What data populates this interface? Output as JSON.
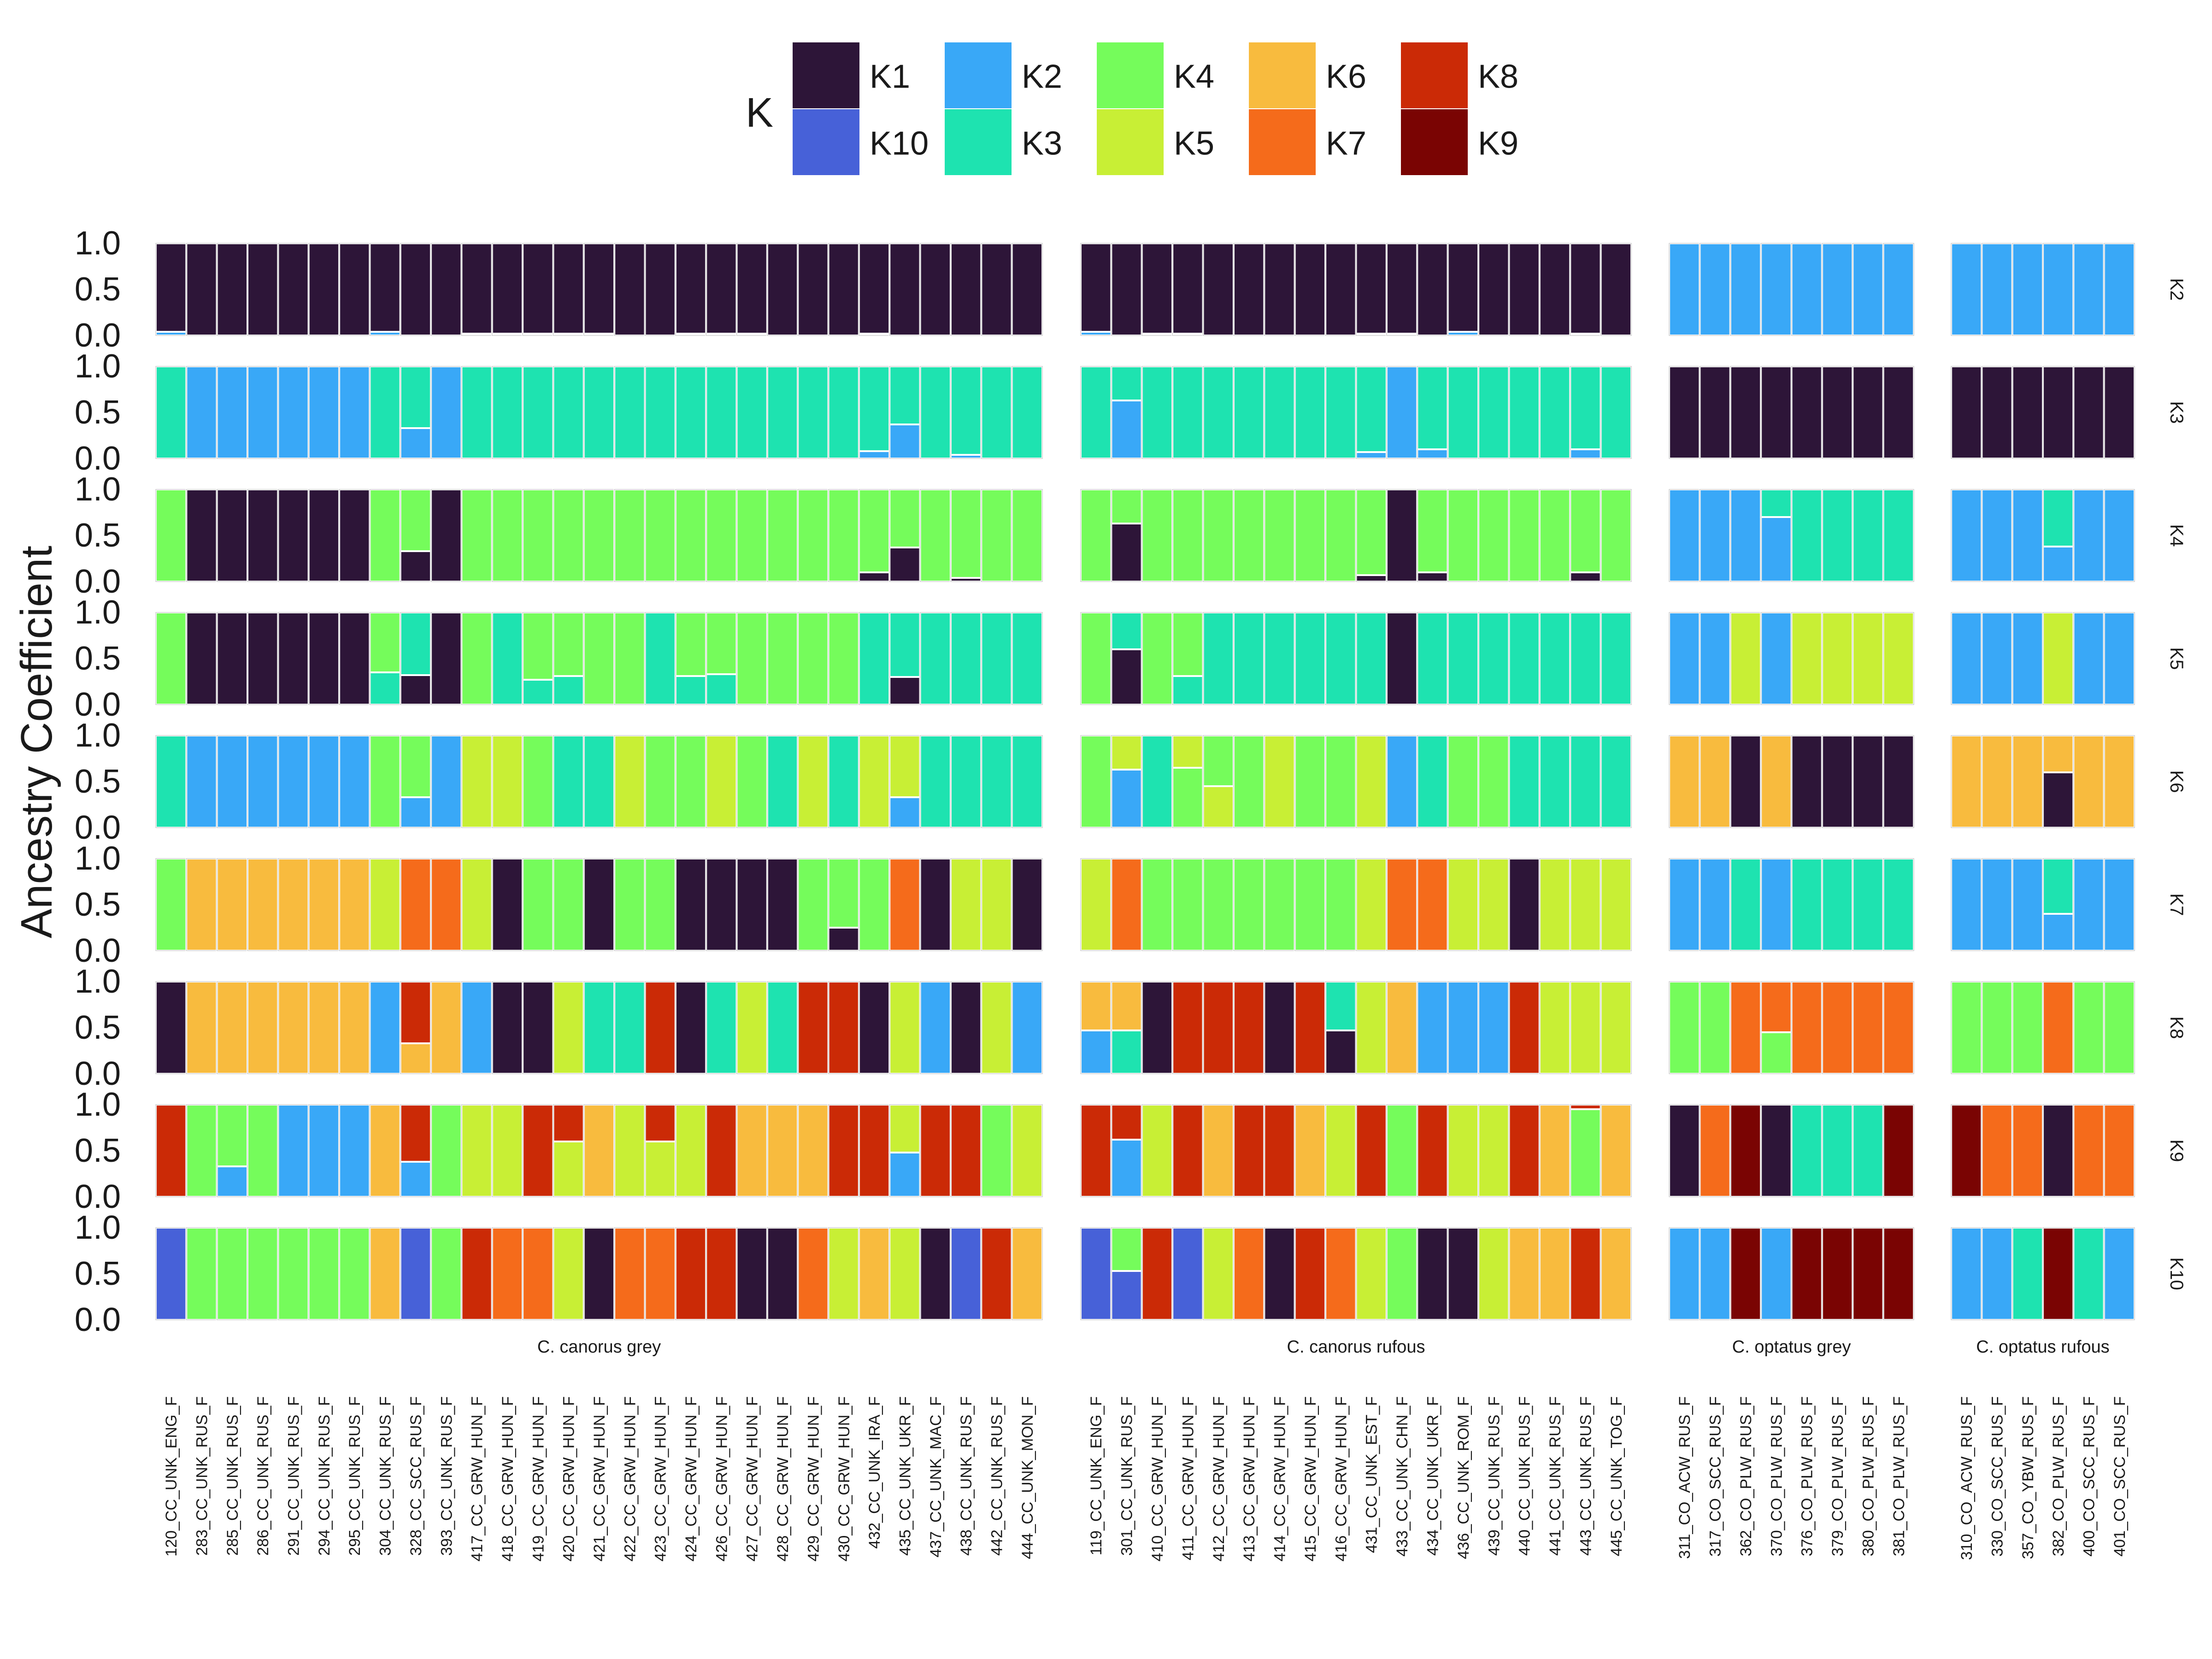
{
  "chart_data": {
    "type": "bar",
    "subtype": "stacked-faceted-admixture",
    "ylabel": "Ancestry Coefficient",
    "ylim": [
      0,
      1
    ],
    "yticks": [
      "0.0",
      "0.5",
      "1.0"
    ],
    "legend": {
      "title": "K",
      "placement": "top",
      "entries": [
        {
          "label": "K1",
          "color": "#2d1538"
        },
        {
          "label": "K2",
          "color": "#39a8f7"
        },
        {
          "label": "K4",
          "color": "#75fc5b"
        },
        {
          "label": "K6",
          "color": "#f8bb3e"
        },
        {
          "label": "K8",
          "color": "#cb2a06"
        },
        {
          "label": "K10",
          "color": "#4761d8"
        },
        {
          "label": "K3",
          "color": "#1ee3b0"
        },
        {
          "label": "K5",
          "color": "#c8ef35"
        },
        {
          "label": "K7",
          "color": "#f56b1b"
        },
        {
          "label": "K9",
          "color": "#7a0403"
        }
      ]
    },
    "colors": {
      "K1": "#2d1538",
      "K2": "#39a8f7",
      "K3": "#1ee3b0",
      "K4": "#75fc5b",
      "K5": "#c8ef35",
      "K6": "#f8bb3e",
      "K7": "#f56b1b",
      "K8": "#cb2a06",
      "K9": "#7a0403",
      "K10": "#4761d8"
    },
    "row_labels": [
      "K2",
      "K3",
      "K4",
      "K5",
      "K6",
      "K7",
      "K8",
      "K9",
      "K10"
    ],
    "groups": [
      {
        "label": "C. canorus grey",
        "samples": [
          "120_CC_UNK_ENG_F",
          "283_CC_UNK_RUS_F",
          "285_CC_UNK_RUS_F",
          "286_CC_UNK_RUS_F",
          "291_CC_UNK_RUS_F",
          "294_CC_UNK_RUS_F",
          "295_CC_UNK_RUS_F",
          "304_CC_UNK_RUS_F",
          "328_CC_SCC_RUS_F",
          "393_CC_UNK_RUS_F",
          "417_CC_GRW_HUN_F",
          "418_CC_GRW_HUN_F",
          "419_CC_GRW_HUN_F",
          "420_CC_GRW_HUN_F",
          "421_CC_GRW_HUN_F",
          "422_CC_GRW_HUN_F",
          "423_CC_GRW_HUN_F",
          "424_CC_GRW_HUN_F",
          "426_CC_GRW_HUN_F",
          "427_CC_GRW_HUN_F",
          "428_CC_GRW_HUN_F",
          "429_CC_GRW_HUN_F",
          "430_CC_GRW_HUN_F",
          "432_CC_UNK_IRA_F",
          "435_CC_UNK_UKR_F",
          "437_CC_UNK_MAC_F",
          "438_CC_UNK_RUS_F",
          "442_CC_UNK_RUS_F",
          "444_CC_UNK_MON_F"
        ],
        "rows": {
          "K2": [
            "K1:0.96|K2:0.04",
            "K1",
            "K1",
            "K1",
            "K1",
            "K1",
            "K1",
            "K1:0.96|K2:0.04",
            "K1",
            "K1",
            "K1:0.98|K2:0.02",
            "K1:0.98|K2:0.02",
            "K1:0.98|K2:0.02",
            "K1:0.98|K2:0.02",
            "K1:0.98|K2:0.02",
            "K1",
            "K1",
            "K1:0.98|K2:0.02",
            "K1:0.98|K2:0.02",
            "K1:0.98|K2:0.02",
            "K1",
            "K1",
            "K1",
            "K1:0.98|K2:0.02",
            "K1",
            "K1",
            "K1",
            "K1",
            "K1"
          ],
          "K3": [
            "K3",
            "K2",
            "K2",
            "K2",
            "K2",
            "K2",
            "K2",
            "K3",
            "K3:0.67|K2:0.33",
            "K2",
            "K3",
            "K3",
            "K3",
            "K3",
            "K3",
            "K3",
            "K3",
            "K3",
            "K3",
            "K3",
            "K3",
            "K3",
            "K3",
            "K3:0.92|K2:0.08",
            "K3:0.63|K2:0.37",
            "K3",
            "K3:0.96|K2:0.04",
            "K3",
            "K3"
          ],
          "K4": [
            "K4",
            "K1",
            "K1",
            "K1",
            "K1",
            "K1",
            "K1",
            "K4",
            "K4:0.67|K1:0.33",
            "K1",
            "K4",
            "K4",
            "K4",
            "K4",
            "K4",
            "K4",
            "K4",
            "K4",
            "K4",
            "K4",
            "K4",
            "K4",
            "K4",
            "K4:0.9|K1:0.1",
            "K4:0.63|K1:0.37",
            "K4",
            "K4:0.96|K1:0.04",
            "K4",
            "K4"
          ],
          "K5": [
            "K4",
            "K1",
            "K1",
            "K1",
            "K1",
            "K1",
            "K1",
            "K4:0.65|K3:0.35",
            "K3:0.68|K1:0.32",
            "K1",
            "K4",
            "K3",
            "K4:0.73|K3:0.27",
            "K4:0.69|K3:0.31",
            "K4",
            "K4",
            "K3",
            "K4:0.69|K3:0.31",
            "K4:0.67|K3:0.33",
            "K4",
            "K4",
            "K4",
            "K4",
            "K3",
            "K3:0.7|K1:0.3",
            "K3",
            "K3",
            "K3",
            "K3"
          ],
          "K6": [
            "K3",
            "K2",
            "K2",
            "K2",
            "K2",
            "K2",
            "K2",
            "K4",
            "K4:0.67|K2:0.33",
            "K2",
            "K5",
            "K5",
            "K4",
            "K3",
            "K3",
            "K5",
            "K4",
            "K4",
            "K5",
            "K4",
            "K3",
            "K5",
            "K3",
            "K5",
            "K5:0.67|K2:0.33",
            "K3",
            "K3",
            "K3",
            "K3"
          ],
          "K7": [
            "K4",
            "K6",
            "K6",
            "K6",
            "K6",
            "K6",
            "K6",
            "K5",
            "K7",
            "K7",
            "K5",
            "K1",
            "K4",
            "K4",
            "K1",
            "K4",
            "K4",
            "K1",
            "K1",
            "K1",
            "K1",
            "K4",
            "K4:0.75|K1:0.25",
            "K4",
            "K7",
            "K1",
            "K5",
            "K5",
            "K1"
          ],
          "K8": [
            "K1",
            "K6",
            "K6",
            "K6",
            "K6",
            "K6",
            "K6",
            "K2",
            "K8:0.67|K6:0.33",
            "K6",
            "K2",
            "K1",
            "K1",
            "K5",
            "K3",
            "K3",
            "K8",
            "K1",
            "K3",
            "K5",
            "K3",
            "K8",
            "K8",
            "K1",
            "K5",
            "K2",
            "K1",
            "K5",
            "K2"
          ],
          "K9": [
            "K8",
            "K4",
            "K4:0.67|K2:0.33",
            "K4",
            "K2",
            "K2",
            "K2",
            "K6",
            "K8:0.62|K2:0.38",
            "K4",
            "K5",
            "K5",
            "K8",
            "K8:0.4|K5:0.6",
            "K6",
            "K5",
            "K8:0.4|K5:0.6",
            "K5",
            "K8",
            "K6",
            "K6",
            "K6",
            "K8",
            "K8",
            "K5:0.52|K2:0.48",
            "K8",
            "K8",
            "K4",
            "K5"
          ],
          "K10": [
            "K10",
            "K4",
            "K4",
            "K4",
            "K4",
            "K4",
            "K4",
            "K6",
            "K10",
            "K4",
            "K8",
            "K7",
            "K7",
            "K5",
            "K1",
            "K7",
            "K7",
            "K8",
            "K8",
            "K1",
            "K1",
            "K7",
            "K5",
            "K6",
            "K5",
            "K1",
            "K10",
            "K8",
            "K6"
          ]
        }
      },
      {
        "label": "C. canorus rufous",
        "samples": [
          "119_CC_UNK_ENG_F",
          "301_CC_UNK_RUS_F",
          "410_CC_GRW_HUN_F",
          "411_CC_GRW_HUN_F",
          "412_CC_GRW_HUN_F",
          "413_CC_GRW_HUN_F",
          "414_CC_GRW_HUN_F",
          "415_CC_GRW_HUN_F",
          "416_CC_GRW_HUN_F",
          "431_CC_UNK_EST_F",
          "433_CC_UNK_CHN_F",
          "434_CC_UNK_UKR_F",
          "436_CC_UNK_ROM_F",
          "439_CC_UNK_RUS_F",
          "440_CC_UNK_RUS_F",
          "441_CC_UNK_RUS_F",
          "443_CC_UNK_RUS_F",
          "445_CC_UNK_TOG_F"
        ],
        "rows": {
          "K2": [
            "K1:0.96|K2:0.04",
            "K1",
            "K1:0.98|K2:0.02",
            "K1:0.98|K2:0.02",
            "K1",
            "K1",
            "K1",
            "K1",
            "K1",
            "K1:0.98|K2:0.02",
            "K1:0.98|K2:0.02",
            "K1",
            "K1:0.96|K2:0.04",
            "K1",
            "K1",
            "K1",
            "K1:0.98|K2:0.02",
            "K1"
          ],
          "K3": [
            "K3",
            "K3:0.37|K2:0.63",
            "K3",
            "K3",
            "K3",
            "K3",
            "K3",
            "K3",
            "K3",
            "K3:0.93|K2:0.07",
            "K2",
            "K3:0.9|K2:0.1",
            "K3",
            "K3",
            "K3",
            "K3",
            "K3:0.9|K2:0.1",
            "K3"
          ],
          "K4": [
            "K4",
            "K4:0.37|K1:0.63",
            "K4",
            "K4",
            "K4",
            "K4",
            "K4",
            "K4",
            "K4",
            "K4:0.93|K1:0.07",
            "K1",
            "K4:0.9|K1:0.1",
            "K4",
            "K4",
            "K4",
            "K4",
            "K4:0.9|K1:0.1",
            "K4"
          ],
          "K5": [
            "K4",
            "K3:0.4|K1:0.6",
            "K4",
            "K4:0.69|K3:0.31",
            "K3",
            "K3",
            "K3",
            "K3",
            "K3",
            "K3",
            "K1",
            "K3",
            "K3",
            "K3",
            "K3",
            "K3",
            "K3",
            "K3"
          ],
          "K6": [
            "K4",
            "K5:0.37|K2:0.63",
            "K3",
            "K5:0.35|K4:0.65",
            "K4:0.55|K5:0.45",
            "K4",
            "K5",
            "K4",
            "K4",
            "K5",
            "K2",
            "K3",
            "K4",
            "K4",
            "K3",
            "K3",
            "K3",
            "K3"
          ],
          "K7": [
            "K5",
            "K7",
            "K4",
            "K4",
            "K4",
            "K4",
            "K4",
            "K4",
            "K4",
            "K5",
            "K7",
            "K7",
            "K5",
            "K5",
            "K1",
            "K5",
            "K5",
            "K5"
          ],
          "K8": [
            "K6:0.53|K2:0.47",
            "K6:0.53|K3:0.47",
            "K1",
            "K8",
            "K8",
            "K8",
            "K1",
            "K8",
            "K3:0.53|K1:0.47",
            "K5",
            "K6",
            "K2",
            "K2",
            "K2",
            "K8",
            "K5",
            "K5",
            "K5"
          ],
          "K9": [
            "K8",
            "K8:0.38|K2:0.62",
            "K5",
            "K8",
            "K6",
            "K8",
            "K8",
            "K6",
            "K5",
            "K8",
            "K4",
            "K8",
            "K5",
            "K5",
            "K8",
            "K6",
            "K8:0.05|K4:0.95",
            "K6"
          ],
          "K10": [
            "K10",
            "K4:0.47|K10:0.53",
            "K8",
            "K10",
            "K5",
            "K7",
            "K1",
            "K8",
            "K7",
            "K5",
            "K4",
            "K1",
            "K1",
            "K5",
            "K6",
            "K6",
            "K8",
            "K6"
          ]
        }
      },
      {
        "label": "C. optatus grey",
        "samples": [
          "311_CO_ACW_RUS_F",
          "317_CO_SCC_RUS_F",
          "362_CO_PLW_RUS_F",
          "370_CO_PLW_RUS_F",
          "376_CO_PLW_RUS_F",
          "379_CO_PLW_RUS_F",
          "380_CO_PLW_RUS_F",
          "381_CO_PLW_RUS_F"
        ],
        "rows": {
          "K2": [
            "K2",
            "K2",
            "K2",
            "K2",
            "K2",
            "K2",
            "K2",
            "K2"
          ],
          "K3": [
            "K1",
            "K1",
            "K1",
            "K1",
            "K1",
            "K1",
            "K1",
            "K1"
          ],
          "K4": [
            "K2",
            "K2",
            "K2",
            "K3:0.3|K2:0.7",
            "K3",
            "K3",
            "K3",
            "K3"
          ],
          "K5": [
            "K2",
            "K2",
            "K5",
            "K2",
            "K5",
            "K5",
            "K5",
            "K5"
          ],
          "K6": [
            "K6",
            "K6",
            "K1",
            "K6",
            "K1",
            "K1",
            "K1",
            "K1"
          ],
          "K7": [
            "K2",
            "K2",
            "K3",
            "K2",
            "K3",
            "K3",
            "K3",
            "K3"
          ],
          "K8": [
            "K4",
            "K4",
            "K7",
            "K7:0.55|K4:0.45",
            "K7",
            "K7",
            "K7",
            "K7"
          ],
          "K9": [
            "K1",
            "K7",
            "K9",
            "K1",
            "K3",
            "K3",
            "K3",
            "K9"
          ],
          "K10": [
            "K2",
            "K2",
            "K9",
            "K2",
            "K9",
            "K9",
            "K9",
            "K9"
          ]
        }
      },
      {
        "label": "C. optatus rufous",
        "samples": [
          "310_CO_ACW_RUS_F",
          "330_CO_SCC_RUS_F",
          "357_CO_YBW_RUS_F",
          "382_CO_PLW_RUS_F",
          "400_CO_SCC_RUS_F",
          "401_CO_SCC_RUS_F"
        ],
        "rows": {
          "K2": [
            "K2",
            "K2",
            "K2",
            "K2",
            "K2",
            "K2"
          ],
          "K3": [
            "K1",
            "K1",
            "K1",
            "K1",
            "K1",
            "K1"
          ],
          "K4": [
            "K2",
            "K2",
            "K2",
            "K3:0.62|K2:0.38",
            "K2",
            "K2"
          ],
          "K5": [
            "K2",
            "K2",
            "K2",
            "K5",
            "K2",
            "K2"
          ],
          "K6": [
            "K6",
            "K6",
            "K6",
            "K6:0.4|K1:0.6",
            "K6",
            "K6"
          ],
          "K7": [
            "K2",
            "K2",
            "K2",
            "K3:0.6|K2:0.4",
            "K2",
            "K2"
          ],
          "K8": [
            "K4",
            "K4",
            "K4",
            "K7",
            "K4",
            "K4"
          ],
          "K9": [
            "K9",
            "K7",
            "K7",
            "K1",
            "K7",
            "K7"
          ],
          "K10": [
            "K2",
            "K2",
            "K3",
            "K9",
            "K3",
            "K2"
          ]
        }
      }
    ]
  }
}
